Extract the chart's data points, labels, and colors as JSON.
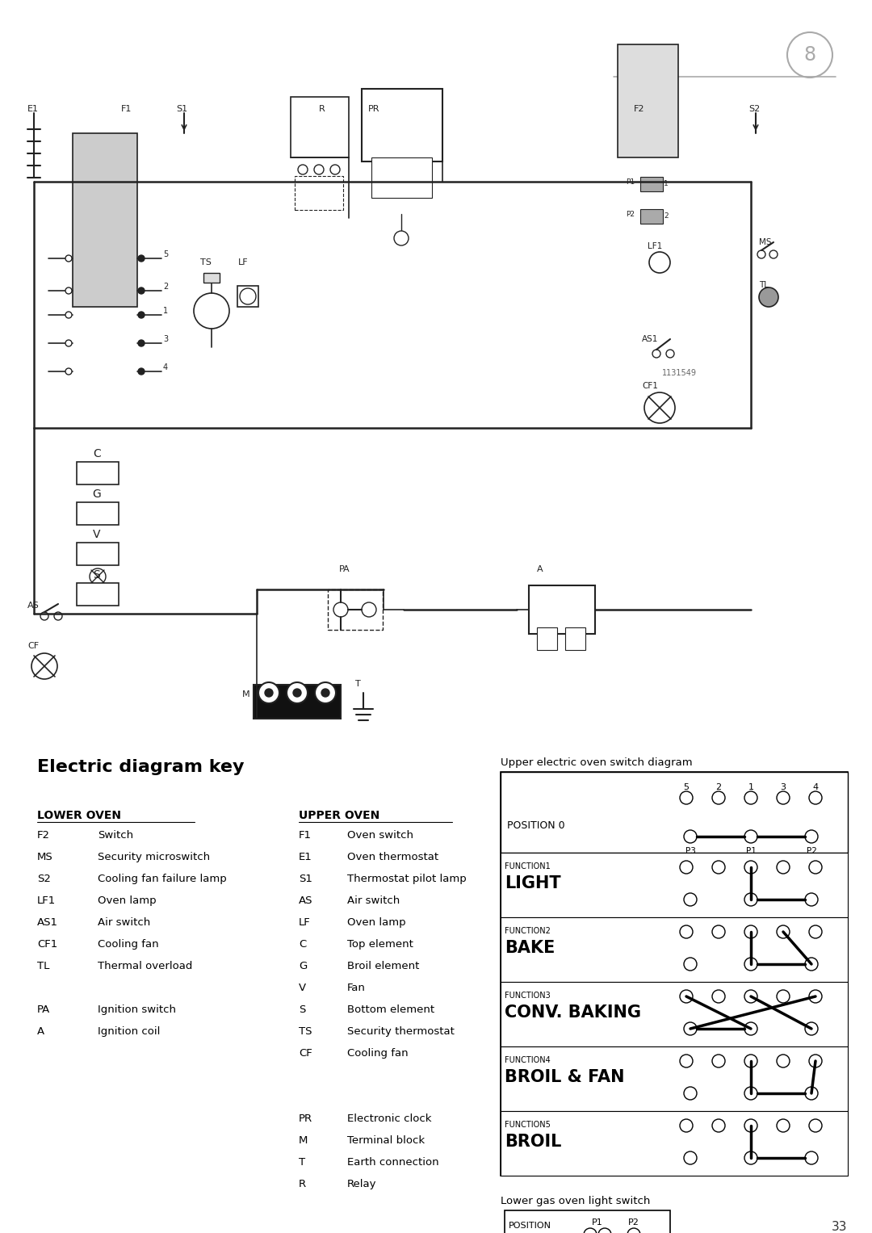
{
  "page_number": "8",
  "page_footer": "33",
  "background_color": "#ffffff",
  "section_title": "Electric diagram key",
  "lower_oven_header": "LOWER OVEN",
  "upper_oven_header": "UPPER OVEN",
  "lower_oven_items": [
    [
      "F2",
      "Switch"
    ],
    [
      "MS",
      "Security microswitch"
    ],
    [
      "S2",
      "Cooling fan failure lamp"
    ],
    [
      "LF1",
      "Oven lamp"
    ],
    [
      "AS1",
      "Air switch"
    ],
    [
      "CF1",
      "Cooling fan"
    ],
    [
      "TL",
      "Thermal overload"
    ],
    [
      "",
      ""
    ],
    [
      "PA",
      "Ignition switch"
    ],
    [
      "A",
      "Ignition coil"
    ]
  ],
  "upper_oven_items": [
    [
      "F1",
      "Oven switch"
    ],
    [
      "E1",
      "Oven thermostat"
    ],
    [
      "S1",
      "Thermostat pilot lamp"
    ],
    [
      "AS",
      "Air switch"
    ],
    [
      "LF",
      "Oven lamp"
    ],
    [
      "C",
      "Top element"
    ],
    [
      "G",
      "Broil element"
    ],
    [
      "V",
      "Fan"
    ],
    [
      "S",
      "Bottom element"
    ],
    [
      "TS",
      "Security thermostat"
    ],
    [
      "CF",
      "Cooling fan"
    ]
  ],
  "shared_items": [
    [
      "PR",
      "Electronic clock"
    ],
    [
      "M",
      "Terminal block"
    ],
    [
      "T",
      "Earth connection"
    ],
    [
      "R",
      "Relay"
    ]
  ],
  "upper_switch_title": "Upper electric oven switch diagram",
  "upper_switch_positions": [
    "5",
    "2",
    "1",
    "3",
    "4"
  ],
  "upper_switch_functions": [
    [
      "FUNCTION1",
      "LIGHT"
    ],
    [
      "FUNCTION2",
      "BAKE"
    ],
    [
      "FUNCTION3",
      "CONV. BAKING"
    ],
    [
      "FUNCTION4",
      "BROIL & FAN"
    ],
    [
      "FUNCTION5",
      "BROIL"
    ]
  ],
  "lower_gas_title": "Lower gas oven light switch",
  "ref_number": "1131549",
  "page_line_color": "#888888",
  "diagram_line_color": "#222222"
}
